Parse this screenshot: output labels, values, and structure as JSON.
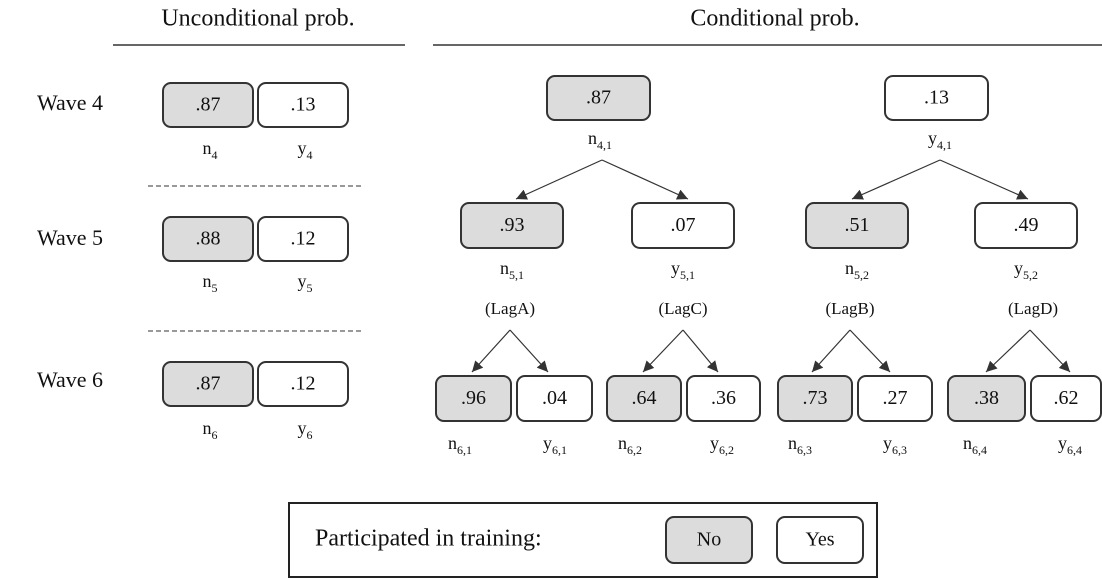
{
  "headers": {
    "unconditional": "Unconditional prob.",
    "conditional": "Conditional prob."
  },
  "waves": [
    "Wave 4",
    "Wave 5",
    "Wave 6"
  ],
  "unconditional": [
    [
      {
        "value": ".87",
        "base": "n",
        "sub": "4"
      },
      {
        "value": ".13",
        "base": "y",
        "sub": "4"
      }
    ],
    [
      {
        "value": ".88",
        "base": "n",
        "sub": "5"
      },
      {
        "value": ".12",
        "base": "y",
        "sub": "5"
      }
    ],
    [
      {
        "value": ".87",
        "base": "n",
        "sub": "6"
      },
      {
        "value": ".12",
        "base": "y",
        "sub": "6"
      }
    ]
  ],
  "conditional": {
    "wave4": [
      {
        "value": ".87",
        "base": "n",
        "sub": "4,1"
      },
      {
        "value": ".13",
        "base": "y",
        "sub": "4,1"
      }
    ],
    "wave5": [
      {
        "value": ".93",
        "base": "n",
        "sub": "5,1"
      },
      {
        "value": ".07",
        "base": "y",
        "sub": "5,1"
      },
      {
        "value": ".51",
        "base": "n",
        "sub": "5,2"
      },
      {
        "value": ".49",
        "base": "y",
        "sub": "5,2"
      }
    ],
    "lags": [
      "(LagA)",
      "(LagC)",
      "(LagB)",
      "(LagD)"
    ],
    "wave6": [
      {
        "value": ".96",
        "base": "n",
        "sub": "6,1"
      },
      {
        "value": ".04",
        "base": "y",
        "sub": "6,1"
      },
      {
        "value": ".64",
        "base": "n",
        "sub": "6,2"
      },
      {
        "value": ".36",
        "base": "y",
        "sub": "6,2"
      },
      {
        "value": ".73",
        "base": "n",
        "sub": "6,3"
      },
      {
        "value": ".27",
        "base": "y",
        "sub": "6,3"
      },
      {
        "value": ".38",
        "base": "n",
        "sub": "6,4"
      },
      {
        "value": ".62",
        "base": "y",
        "sub": "6,4"
      }
    ]
  },
  "legend": {
    "title": "Participated in training:",
    "no": "No",
    "yes": "Yes"
  }
}
